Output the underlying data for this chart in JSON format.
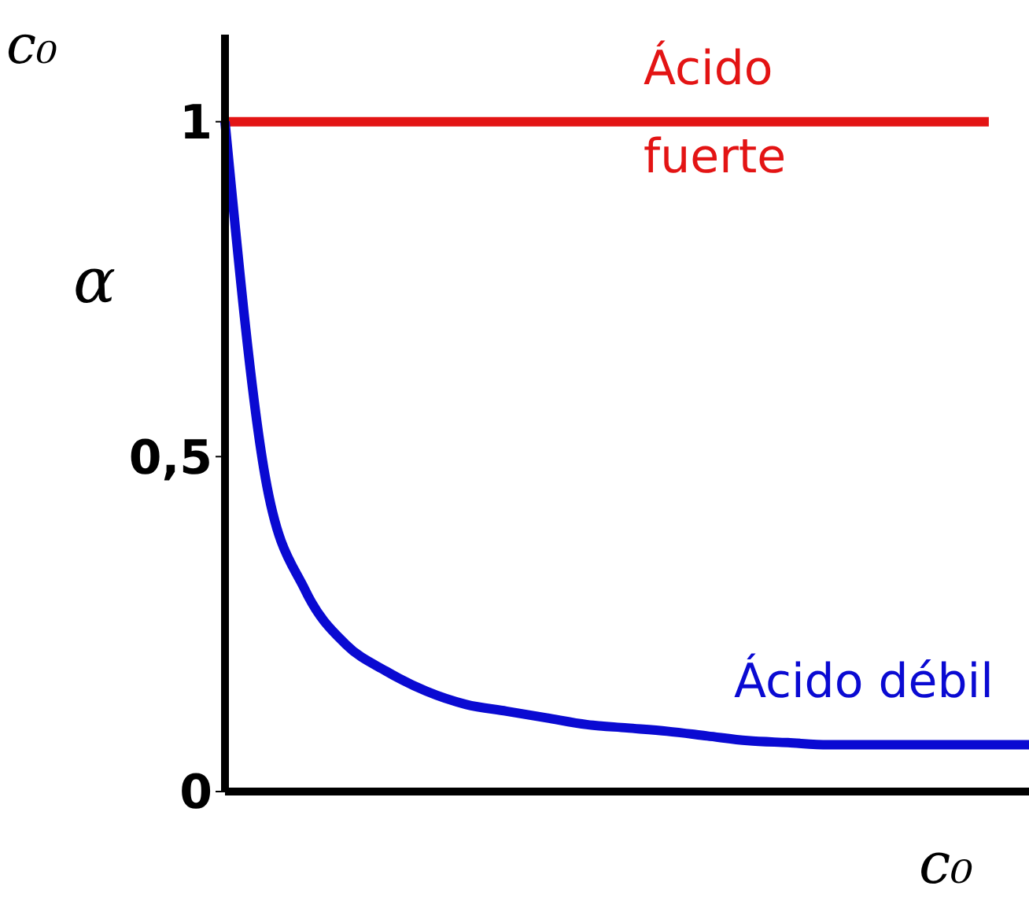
{
  "chart_data": {
    "type": "line",
    "xlabel": "c₀",
    "ylabel": "α",
    "annotations": [
      "c₀"
    ],
    "categories": [
      null,
      null,
      null,
      null,
      null,
      null,
      null,
      null,
      null,
      null,
      null,
      null,
      null,
      null,
      null,
      null,
      null,
      null,
      null,
      null,
      null
    ],
    "series": [
      {
        "name": "Ácido fuerte",
        "color": "#e31414",
        "values": [
          1,
          1,
          1,
          1,
          1,
          1,
          1,
          1,
          1,
          1,
          1,
          1,
          1,
          1,
          1,
          1,
          1,
          1,
          1,
          1,
          null
        ]
      },
      {
        "name": "Ácido débil",
        "color": "#0a0ad2",
        "values": [
          1,
          0.47,
          0.3,
          0.22,
          0.18,
          0.15,
          0.13,
          0.12,
          0.11,
          0.1,
          0.095,
          0.09,
          0.083,
          0.076,
          0.073,
          0.07,
          0.07,
          0.07,
          0.07,
          0.07,
          0.07
        ]
      }
    ],
    "ylim": [
      0,
      1.13
    ],
    "yticks": [
      0,
      {
        "value": 0.5,
        "label": "0,5"
      },
      1
    ],
    "marker": "none",
    "line_style": "solid"
  }
}
